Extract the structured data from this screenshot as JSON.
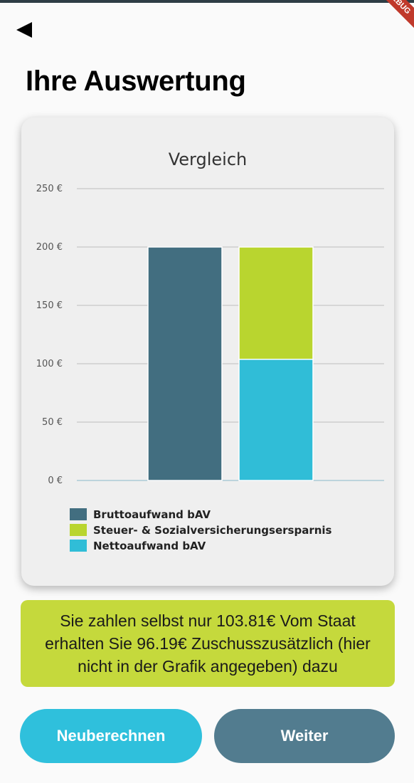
{
  "app": {
    "debug_banner": "DEBUG",
    "back_icon": "back-arrow-icon"
  },
  "page": {
    "title": "Ihre Auswertung"
  },
  "colors": {
    "brutto": "#426e80",
    "ersparnis": "#b9d52f",
    "netto": "#30bdd7",
    "info_box": "#c5d93c",
    "recalc_button": "#2fc0dc",
    "next_button": "#527c8f"
  },
  "chart_data": {
    "type": "bar",
    "title": "Vergleich",
    "y_ticks": [
      0,
      50,
      100,
      150,
      200,
      250
    ],
    "y_tick_labels": [
      "0 €",
      "50 €",
      "100 €",
      "150 €",
      "200 €",
      "250 €"
    ],
    "ylim": [
      0,
      250
    ],
    "grid": true,
    "legend_position": "bottom-left",
    "stacked": true,
    "bars": [
      {
        "segments": [
          {
            "series": "Bruttoaufwand bAV",
            "value": 200
          }
        ]
      },
      {
        "segments": [
          {
            "series": "Nettoaufwand bAV",
            "value": 103.81
          },
          {
            "series": "Steuer- & Sozialversicherungsersparnis",
            "value": 96.19
          }
        ]
      }
    ],
    "legend": [
      {
        "name": "Bruttoaufwand bAV",
        "color": "#426e80"
      },
      {
        "name": "Steuer- & Sozialversicherungsersparnis",
        "color": "#b9d52f"
      },
      {
        "name": "Nettoaufwand bAV",
        "color": "#30bdd7"
      }
    ]
  },
  "info": {
    "text": "Sie zahlen selbst nur 103.81€ Vom Staat erhalten Sie 96.19€ Zuschusszusätzlich (hier nicht in der Grafik angegeben) dazu"
  },
  "buttons": {
    "recalc_label": "Neuberechnen",
    "next_label": "Weiter"
  }
}
